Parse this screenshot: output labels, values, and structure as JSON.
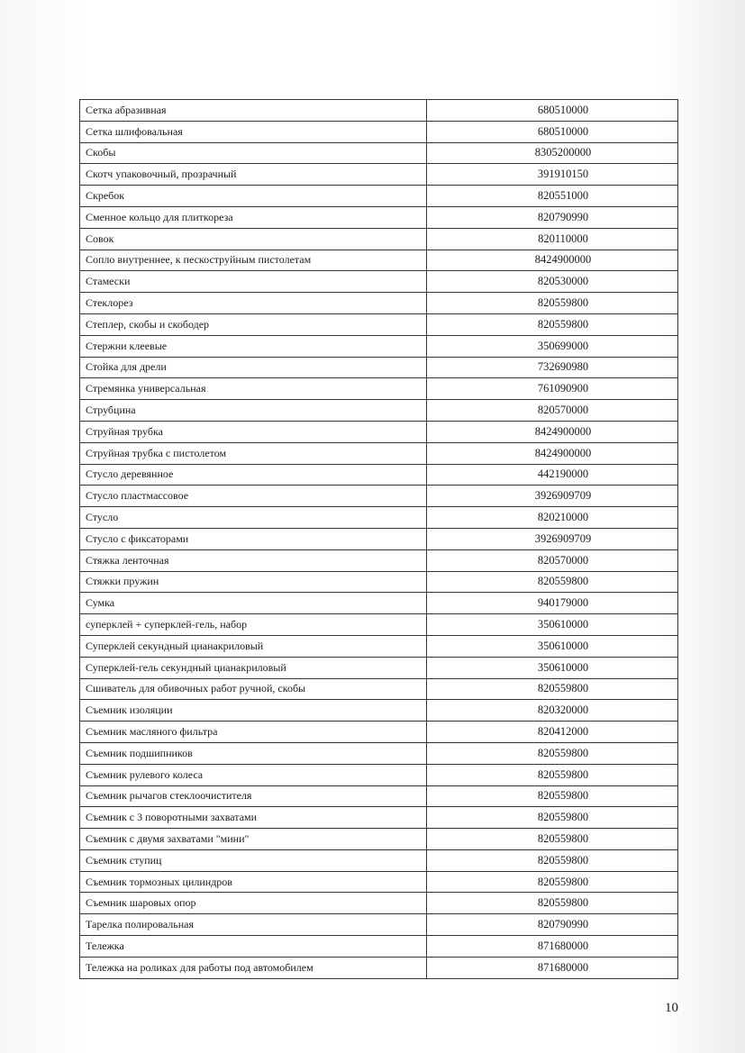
{
  "table": {
    "rows": [
      [
        "Сетка абразивная",
        "680510000"
      ],
      [
        "Сетка шлифовальная",
        "680510000"
      ],
      [
        "Скобы",
        "8305200000"
      ],
      [
        "Скотч упаковочный, прозрачный",
        "391910150"
      ],
      [
        "Скребок",
        "820551000"
      ],
      [
        "Сменное кольцо для плиткореза",
        "820790990"
      ],
      [
        "Совок",
        "820110000"
      ],
      [
        "Сопло внутреннее, к пескоструйным пистолетам",
        "8424900000"
      ],
      [
        "Стамески",
        "820530000"
      ],
      [
        "Стеклорез",
        "820559800"
      ],
      [
        "Степлер, скобы и скободер",
        "820559800"
      ],
      [
        "Стержни клеевые",
        "350699000"
      ],
      [
        "Стойка для дрели",
        "732690980"
      ],
      [
        "Стремянка универсальная",
        "761090900"
      ],
      [
        "Струбцина",
        "820570000"
      ],
      [
        "Струйная трубка",
        "8424900000"
      ],
      [
        "Струйная трубка с пистолетом",
        "8424900000"
      ],
      [
        "Стусло деревянное",
        "442190000"
      ],
      [
        "Стусло пластмассовое",
        "3926909709"
      ],
      [
        "Стусло",
        "820210000"
      ],
      [
        "Стусло с фиксаторами",
        "3926909709"
      ],
      [
        "Стяжка ленточная",
        "820570000"
      ],
      [
        "Стяжки пружин",
        "820559800"
      ],
      [
        "Сумка",
        "940179000"
      ],
      [
        "суперклей + суперклей-гель, набор",
        "350610000"
      ],
      [
        "Суперклей секундный цианакриловый",
        "350610000"
      ],
      [
        "Суперклей-гель секундный цианакриловый",
        "350610000"
      ],
      [
        "Сшиватель для обивочных работ ручной, скобы",
        "820559800"
      ],
      [
        "Съемник изоляции",
        "820320000"
      ],
      [
        "Съемник масляного фильтра",
        "820412000"
      ],
      [
        "Съемник подшипников",
        "820559800"
      ],
      [
        "Съемник рулевого колеса",
        "820559800"
      ],
      [
        "Съемник рычагов стеклоочистителя",
        "820559800"
      ],
      [
        "Съемник с 3 поворотными захватами",
        "820559800"
      ],
      [
        "Съемник с двумя захватами \"мини\"",
        "820559800"
      ],
      [
        "Съемник ступиц",
        "820559800"
      ],
      [
        "Съемник тормозных цилиндров",
        "820559800"
      ],
      [
        "Съемник шаровых опор",
        "820559800"
      ],
      [
        "Тарелка полировальная",
        "820790990"
      ],
      [
        "Тележка",
        "871680000"
      ],
      [
        "Тележка на роликах для работы под автомобилем",
        "871680000"
      ]
    ]
  },
  "page_number": "10"
}
